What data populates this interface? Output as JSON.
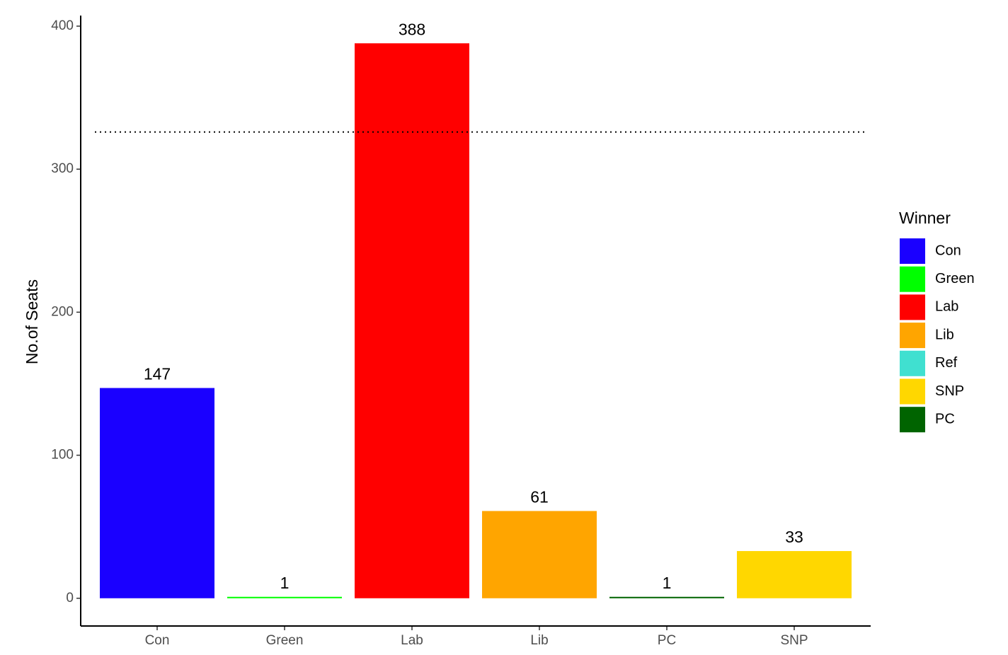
{
  "chart_data": {
    "type": "bar",
    "y_label": "No.of Seats",
    "categories": [
      "Con",
      "Green",
      "Lab",
      "Lib",
      "PC",
      "SNP"
    ],
    "values": [
      147,
      1,
      388,
      61,
      1,
      33
    ],
    "colors": [
      "#1a00ff",
      "#00ff00",
      "#ff0000",
      "#ffa500",
      "#006400",
      "#ffd700"
    ],
    "ylim": [
      -19.4,
      407.4
    ],
    "yticks": [
      0,
      100,
      200,
      300,
      400
    ],
    "reference_line": 326,
    "legend": {
      "title": "Winner",
      "position": "right",
      "items": [
        {
          "name": "Con",
          "color": "#1a00ff"
        },
        {
          "name": "Green",
          "color": "#00ff00"
        },
        {
          "name": "Lab",
          "color": "#ff0000"
        },
        {
          "name": "Lib",
          "color": "#ffa500"
        },
        {
          "name": "Ref",
          "color": "#40e0d0"
        },
        {
          "name": "SNP",
          "color": "#ffd700"
        },
        {
          "name": "PC",
          "color": "#006400"
        }
      ]
    }
  }
}
